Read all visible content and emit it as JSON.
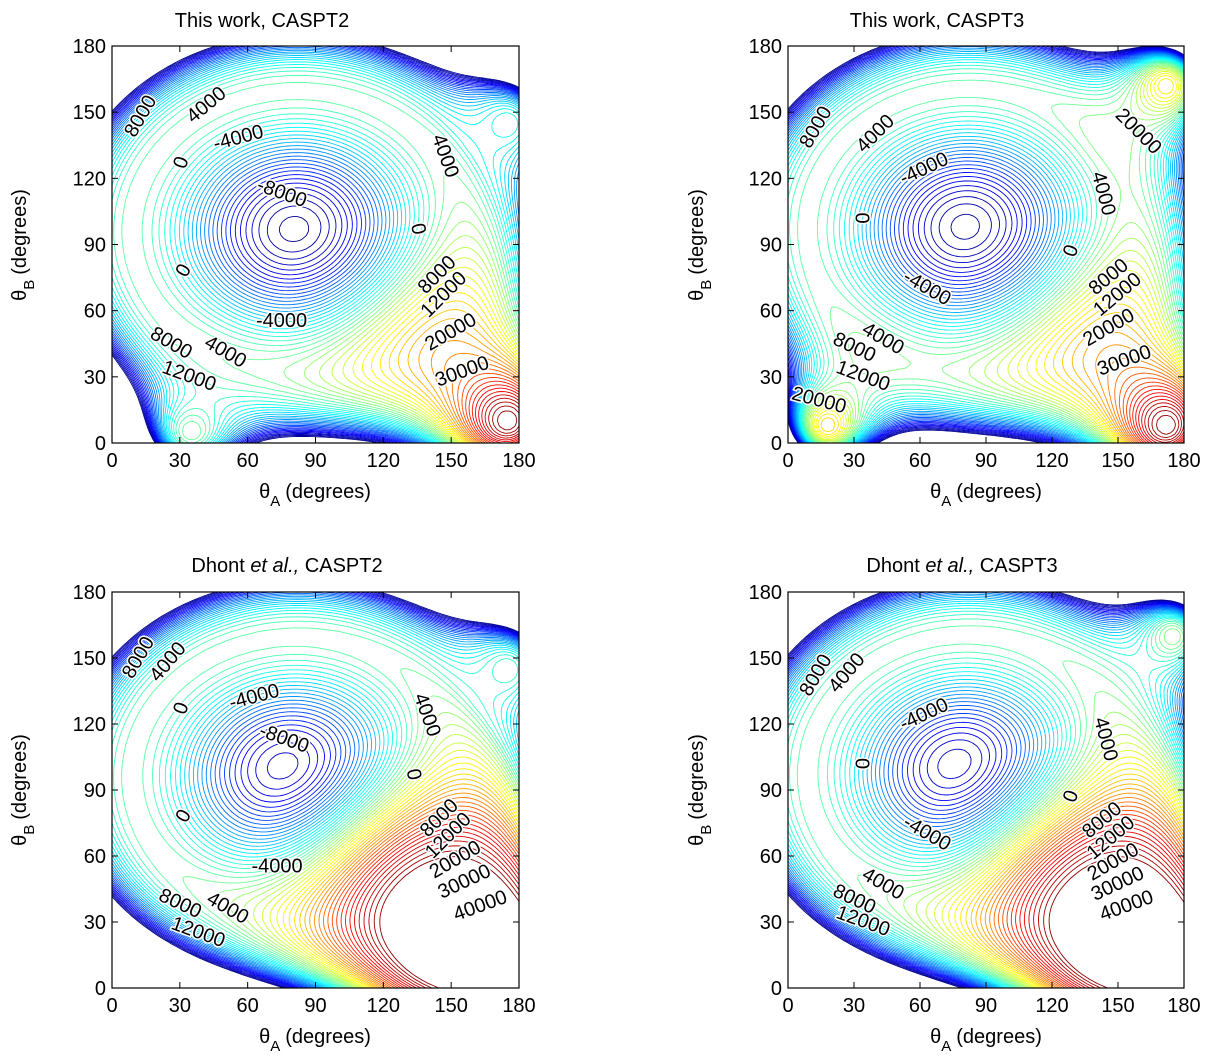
{
  "figure": {
    "panels": [
      {
        "title_prefix": "This work,",
        "title_italic": "",
        "title_suffix": "CASPT2",
        "xlabel_sym": "θ",
        "xlabel_sub": "A",
        "xlabel_unit": "(degrees)",
        "ylabel_sym": "θ",
        "ylabel_sub": "B",
        "ylabel_unit": "(degrees)"
      },
      {
        "title_prefix": "This work,",
        "title_italic": "",
        "title_suffix": "CASPT3",
        "xlabel_sym": "θ",
        "xlabel_sub": "A",
        "xlabel_unit": "(degrees)",
        "ylabel_sym": "θ",
        "ylabel_sub": "B",
        "ylabel_unit": "(degrees)"
      },
      {
        "title_prefix": "Dhont",
        "title_italic": "et al.,",
        "title_suffix": "CASPT2",
        "xlabel_sym": "θ",
        "xlabel_sub": "A",
        "xlabel_unit": "(degrees)",
        "ylabel_sym": "θ",
        "ylabel_sub": "B",
        "ylabel_unit": "(degrees)"
      },
      {
        "title_prefix": "Dhont",
        "title_italic": "et al.,",
        "title_suffix": "CASPT3",
        "xlabel_sym": "θ",
        "xlabel_sub": "A",
        "xlabel_unit": "(degrees)",
        "ylabel_sym": "θ",
        "ylabel_sub": "B",
        "ylabel_unit": "(degrees)"
      }
    ]
  },
  "chart_data": [
    {
      "type": "contour",
      "title": "This work, CASPT2",
      "xlabel": "θA (degrees)",
      "ylabel": "θB (degrees)",
      "xlim": [
        0,
        180
      ],
      "ylim": [
        0,
        180
      ],
      "xticks": [
        0,
        30,
        60,
        90,
        120,
        150,
        180
      ],
      "yticks": [
        0,
        30,
        60,
        90,
        120,
        150,
        180
      ],
      "grid": false,
      "colormap": "jet",
      "level_step": 1000,
      "color_range": [
        -11000,
        45000
      ],
      "minimum": {
        "x": 82,
        "y": 96,
        "value": -11000
      },
      "features": [
        {
          "x": 175,
          "y": 10,
          "value": 45000
        },
        {
          "x": 35,
          "y": 5,
          "value": 17000
        },
        {
          "x": 175,
          "y": 145,
          "value": 12000
        }
      ],
      "contour_labels": [
        {
          "text": "8000",
          "x": 13,
          "y": 148,
          "rotate": -60
        },
        {
          "text": "4000",
          "x": 42,
          "y": 153,
          "rotate": -40
        },
        {
          "text": "0",
          "x": 31,
          "y": 127,
          "rotate": -70
        },
        {
          "text": "-4000",
          "x": 56,
          "y": 138,
          "rotate": -15
        },
        {
          "text": "-8000",
          "x": 75,
          "y": 113,
          "rotate": 20
        },
        {
          "text": "4000",
          "x": 147,
          "y": 130,
          "rotate": 70
        },
        {
          "text": "0",
          "x": 135,
          "y": 97,
          "rotate": 80
        },
        {
          "text": "8000",
          "x": 144,
          "y": 76,
          "rotate": -45
        },
        {
          "text": "12000",
          "x": 147,
          "y": 67,
          "rotate": -45
        },
        {
          "text": "0",
          "x": 32,
          "y": 78,
          "rotate": -60
        },
        {
          "text": "-4000",
          "x": 75,
          "y": 55,
          "rotate": 0
        },
        {
          "text": "8000",
          "x": 26,
          "y": 45,
          "rotate": 30
        },
        {
          "text": "4000",
          "x": 50,
          "y": 41,
          "rotate": 30
        },
        {
          "text": "12000",
          "x": 34,
          "y": 30,
          "rotate": 20
        },
        {
          "text": "20000",
          "x": 150,
          "y": 50,
          "rotate": -30
        },
        {
          "text": "30000",
          "x": 155,
          "y": 32,
          "rotate": -20
        }
      ]
    },
    {
      "type": "contour",
      "title": "This work, CASPT3",
      "xlabel": "θA (degrees)",
      "ylabel": "θB (degrees)",
      "xlim": [
        0,
        180
      ],
      "ylim": [
        0,
        180
      ],
      "xticks": [
        0,
        30,
        60,
        90,
        120,
        150,
        180
      ],
      "yticks": [
        0,
        30,
        60,
        90,
        120,
        150,
        180
      ],
      "grid": false,
      "colormap": "jet",
      "level_step": 1000,
      "color_range": [
        -11000,
        45000
      ],
      "minimum": {
        "x": 82,
        "y": 97,
        "value": -11000
      },
      "features": [
        {
          "x": 172,
          "y": 8,
          "value": 45000
        },
        {
          "x": 18,
          "y": 8,
          "value": 27000
        },
        {
          "x": 172,
          "y": 162,
          "value": 26000
        }
      ],
      "contour_labels": [
        {
          "text": "8000",
          "x": 13,
          "y": 143,
          "rotate": -60
        },
        {
          "text": "4000",
          "x": 40,
          "y": 140,
          "rotate": -45
        },
        {
          "text": "-4000",
          "x": 62,
          "y": 124,
          "rotate": -25
        },
        {
          "text": "0",
          "x": 33,
          "y": 102,
          "rotate": 90
        },
        {
          "text": "4000",
          "x": 143,
          "y": 113,
          "rotate": 75
        },
        {
          "text": "0",
          "x": 129,
          "y": 87,
          "rotate": -70
        },
        {
          "text": "20000",
          "x": 159,
          "y": 141,
          "rotate": 45
        },
        {
          "text": "-4000",
          "x": 63,
          "y": 70,
          "rotate": 30
        },
        {
          "text": "8000",
          "x": 146,
          "y": 75,
          "rotate": -40
        },
        {
          "text": "12000",
          "x": 150,
          "y": 67,
          "rotate": -40
        },
        {
          "text": "4000",
          "x": 43,
          "y": 47,
          "rotate": 30
        },
        {
          "text": "8000",
          "x": 30,
          "y": 43,
          "rotate": 25
        },
        {
          "text": "12000",
          "x": 34,
          "y": 30,
          "rotate": 20
        },
        {
          "text": "20000",
          "x": 14,
          "y": 19,
          "rotate": 15
        },
        {
          "text": "20000",
          "x": 146,
          "y": 52,
          "rotate": -30
        },
        {
          "text": "30000",
          "x": 153,
          "y": 37,
          "rotate": -20
        }
      ]
    },
    {
      "type": "contour",
      "title": "Dhont et al., CASPT2",
      "xlabel": "θA (degrees)",
      "ylabel": "θB (degrees)",
      "xlim": [
        0,
        180
      ],
      "ylim": [
        0,
        180
      ],
      "xticks": [
        0,
        30,
        60,
        90,
        120,
        150,
        180
      ],
      "yticks": [
        0,
        30,
        60,
        90,
        120,
        150,
        180
      ],
      "grid": false,
      "colormap": "jet",
      "level_step": 1000,
      "color_range": [
        -11000,
        45000
      ],
      "minimum": {
        "x": 82,
        "y": 96,
        "value": -11000
      },
      "features": [
        {
          "x": 150,
          "y": 25,
          "value": 50000
        },
        {
          "x": 175,
          "y": 10,
          "value": 50000
        },
        {
          "x": 175,
          "y": 145,
          "value": 14000
        }
      ],
      "contour_labels": [
        {
          "text": "8000",
          "x": 12,
          "y": 150,
          "rotate": -60
        },
        {
          "text": "4000",
          "x": 25,
          "y": 148,
          "rotate": -50
        },
        {
          "text": "0",
          "x": 31,
          "y": 127,
          "rotate": -70
        },
        {
          "text": "-4000",
          "x": 63,
          "y": 132,
          "rotate": -15
        },
        {
          "text": "-8000",
          "x": 76,
          "y": 113,
          "rotate": 20
        },
        {
          "text": "4000",
          "x": 139,
          "y": 124,
          "rotate": 70
        },
        {
          "text": "0",
          "x": 133,
          "y": 97,
          "rotate": 80
        },
        {
          "text": "0",
          "x": 32,
          "y": 78,
          "rotate": -60
        },
        {
          "text": "-4000",
          "x": 73,
          "y": 55,
          "rotate": 0
        },
        {
          "text": "8000",
          "x": 145,
          "y": 77,
          "rotate": -45
        },
        {
          "text": "12000",
          "x": 149,
          "y": 69,
          "rotate": -45
        },
        {
          "text": "20000",
          "x": 152,
          "y": 58,
          "rotate": -30
        },
        {
          "text": "30000",
          "x": 156,
          "y": 48,
          "rotate": -25
        },
        {
          "text": "40000",
          "x": 163,
          "y": 37,
          "rotate": -20
        },
        {
          "text": "8000",
          "x": 30,
          "y": 38,
          "rotate": 25
        },
        {
          "text": "4000",
          "x": 51,
          "y": 36,
          "rotate": 30
        },
        {
          "text": "12000",
          "x": 38,
          "y": 25,
          "rotate": 20
        }
      ]
    },
    {
      "type": "contour",
      "title": "Dhont et al., CASPT3",
      "xlabel": "θA (degrees)",
      "ylabel": "θB (degrees)",
      "xlim": [
        0,
        180
      ],
      "ylim": [
        0,
        180
      ],
      "xticks": [
        0,
        30,
        60,
        90,
        120,
        150,
        180
      ],
      "yticks": [
        0,
        30,
        60,
        90,
        120,
        150,
        180
      ],
      "grid": false,
      "colormap": "jet",
      "level_step": 1000,
      "color_range": [
        -11000,
        45000
      ],
      "minimum": {
        "x": 82,
        "y": 97,
        "value": -11000
      },
      "features": [
        {
          "x": 150,
          "y": 25,
          "value": 50000
        },
        {
          "x": 175,
          "y": 10,
          "value": 50000
        },
        {
          "x": 175,
          "y": 160,
          "value": 18000
        }
      ],
      "contour_labels": [
        {
          "text": "8000",
          "x": 13,
          "y": 142,
          "rotate": -60
        },
        {
          "text": "4000",
          "x": 27,
          "y": 143,
          "rotate": -50
        },
        {
          "text": "-4000",
          "x": 62,
          "y": 124,
          "rotate": -25
        },
        {
          "text": "0",
          "x": 33,
          "y": 102,
          "rotate": 90
        },
        {
          "text": "4000",
          "x": 144,
          "y": 113,
          "rotate": 75
        },
        {
          "text": "0",
          "x": 129,
          "y": 87,
          "rotate": -70
        },
        {
          "text": "-4000",
          "x": 63,
          "y": 70,
          "rotate": 30
        },
        {
          "text": "8000",
          "x": 143,
          "y": 76,
          "rotate": -40
        },
        {
          "text": "12000",
          "x": 147,
          "y": 68,
          "rotate": -40
        },
        {
          "text": "20000",
          "x": 148,
          "y": 57,
          "rotate": -30
        },
        {
          "text": "30000",
          "x": 150,
          "y": 47,
          "rotate": -25
        },
        {
          "text": "40000",
          "x": 154,
          "y": 37,
          "rotate": -20
        },
        {
          "text": "4000",
          "x": 43,
          "y": 47,
          "rotate": 30
        },
        {
          "text": "8000",
          "x": 30,
          "y": 40,
          "rotate": 25
        },
        {
          "text": "12000",
          "x": 34,
          "y": 30,
          "rotate": 20
        }
      ]
    }
  ]
}
